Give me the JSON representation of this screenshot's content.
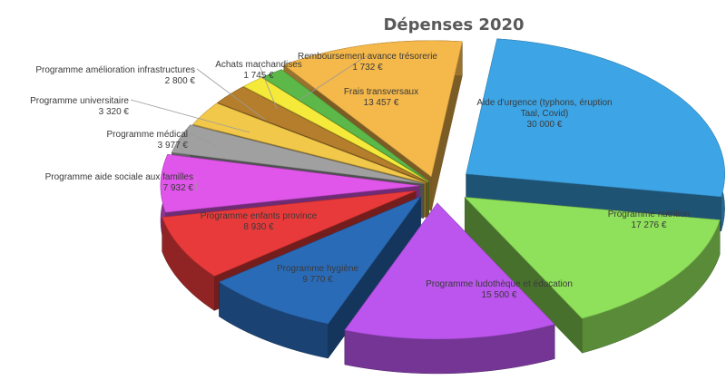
{
  "chart_data": {
    "type": "pie",
    "title": "Dépenses 2020",
    "slices": [
      {
        "name": "Aide d'urgence (typhons, éruption Taal, Covid)",
        "name_lines": [
          "Aide d'urgence (typhons, éruption",
          "Taal, Covid)"
        ],
        "value": 30000,
        "value_label": "30 000 €",
        "color": "#3da5e6"
      },
      {
        "name": "Programme nutrition",
        "name_lines": [
          "Programme nutrition"
        ],
        "value": 17276,
        "value_label": "17 276 €",
        "color": "#8fe05a"
      },
      {
        "name": "Programme ludothèque et éducation",
        "name_lines": [
          "Programme ludothèque et éducation"
        ],
        "value": 15500,
        "value_label": "15 500 €",
        "color": "#bb55ee"
      },
      {
        "name": "Programme hygiène",
        "name_lines": [
          "Programme hygiène"
        ],
        "value": 9770,
        "value_label": "9 770 €",
        "color": "#2a6bb8"
      },
      {
        "name": "Programme enfants province",
        "name_lines": [
          "Programme enfants province"
        ],
        "value": 8930,
        "value_label": "8 930 €",
        "color": "#e83a3a"
      },
      {
        "name": "Programme aide sociale aux familles",
        "name_lines": [
          "Programme aide sociale aux familles"
        ],
        "value": 7932,
        "value_label": "7 932 €",
        "color": "#e055ea"
      },
      {
        "name": "Programme médical",
        "name_lines": [
          "Programme médical"
        ],
        "value": 3977,
        "value_label": "3 977 €",
        "color": "#a0a0a0"
      },
      {
        "name": "Programme universitaire",
        "name_lines": [
          "Programme universitaire"
        ],
        "value": 3320,
        "value_label": "3 320 €",
        "color": "#f2c84b"
      },
      {
        "name": "Programme amélioration infrastructures",
        "name_lines": [
          "Programme amélioration infrastructures"
        ],
        "value": 2800,
        "value_label": "2 800 €",
        "color": "#b57e2c"
      },
      {
        "name": "Achats marchandises",
        "name_lines": [
          "Achats marchandises"
        ],
        "value": 1745,
        "value_label": "1 745 €",
        "color": "#f5ea3a"
      },
      {
        "name": "Remboursement avance trésorerie",
        "name_lines": [
          "Remboursement avance trésorerie"
        ],
        "value": 1732,
        "value_label": "1 732 €",
        "color": "#5cb848"
      },
      {
        "name": "Frais transversaux",
        "name_lines": [
          "Frais transversaux"
        ],
        "value": 13457,
        "value_label": "13 457 €",
        "color": "#f5b84a"
      }
    ]
  }
}
